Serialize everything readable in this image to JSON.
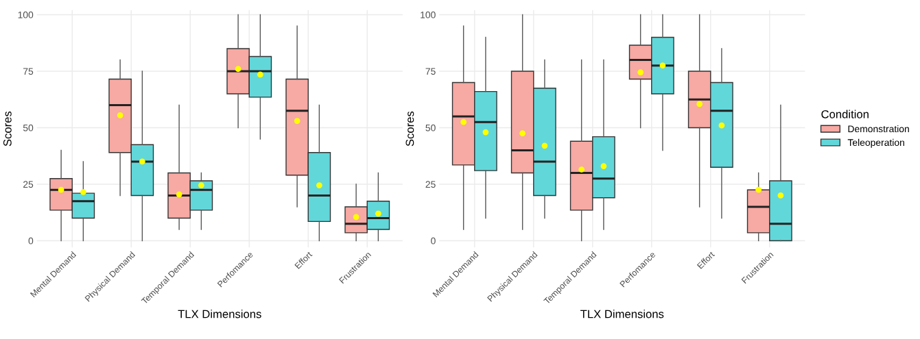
{
  "chart_data": [
    {
      "type": "box",
      "xlabel": "TLX Dimensions",
      "ylabel": "Scores",
      "categories": [
        "Mental Demand",
        "Physical Demand",
        "Temporal Demand",
        "Perfomance",
        "Effort",
        "Frustration"
      ],
      "ylim": [
        -3,
        102
      ],
      "yticks": [
        0,
        25,
        50,
        75,
        100
      ],
      "grid": true,
      "series": [
        {
          "color": "#f7a9a3",
          "boxes": [
            {
              "low": 0,
              "q1": 13.5,
              "median": 22.5,
              "q3": 27.5,
              "high": 40,
              "mean": 22.5
            },
            {
              "low": 20,
              "q1": 39,
              "median": 60,
              "q3": 71.5,
              "high": 80,
              "mean": 55.5
            },
            {
              "low": 5,
              "q1": 10,
              "median": 20,
              "q3": 30,
              "high": 60,
              "mean": 20.5
            },
            {
              "low": 50,
              "q1": 65,
              "median": 75,
              "q3": 85,
              "high": 100,
              "mean": 76
            },
            {
              "low": 15,
              "q1": 29,
              "median": 57.5,
              "q3": 71.5,
              "high": 95,
              "mean": 53
            },
            {
              "low": 0,
              "q1": 3.5,
              "median": 7.5,
              "q3": 15,
              "high": 25,
              "mean": 10.5
            }
          ]
        },
        {
          "color": "#62d7da",
          "boxes": [
            {
              "low": 0,
              "q1": 10,
              "median": 17.5,
              "q3": 21,
              "high": 35,
              "mean": 21.5
            },
            {
              "low": 0,
              "q1": 20,
              "median": 35,
              "q3": 42.5,
              "high": 75,
              "mean": 35
            },
            {
              "low": 5,
              "q1": 13.5,
              "median": 22.5,
              "q3": 26.5,
              "high": 30,
              "mean": 24.5
            },
            {
              "low": 45,
              "q1": 63.5,
              "median": 75,
              "q3": 81.5,
              "high": 100,
              "mean": 73.5
            },
            {
              "low": 0,
              "q1": 8.5,
              "median": 20,
              "q3": 39,
              "high": 60,
              "mean": 24.5
            },
            {
              "low": 0,
              "q1": 5,
              "median": 10,
              "q3": 17.5,
              "high": 30,
              "mean": 12
            }
          ]
        }
      ]
    },
    {
      "type": "box",
      "xlabel": "TLX Dimensions",
      "ylabel": "Scores",
      "legend_title": "Condition",
      "categories": [
        "Mental Demand",
        "Physical Demand",
        "Temporal Demand",
        "Perfomance",
        "Effort",
        "Frustration"
      ],
      "ylim": [
        -3,
        102
      ],
      "yticks": [
        0,
        25,
        50,
        75,
        100
      ],
      "grid": true,
      "legend": "right",
      "series": [
        {
          "name": "Demonstration",
          "color": "#f7a9a3",
          "boxes": [
            {
              "low": 5,
              "q1": 33.5,
              "median": 55,
              "q3": 70,
              "high": 95,
              "mean": 52.5
            },
            {
              "low": 5,
              "q1": 30,
              "median": 40,
              "q3": 75,
              "high": 100,
              "mean": 47.5
            },
            {
              "low": 0,
              "q1": 13.5,
              "median": 30,
              "q3": 44,
              "high": 80,
              "mean": 31.5
            },
            {
              "low": 50,
              "q1": 71.5,
              "median": 80,
              "q3": 86.5,
              "high": 100,
              "mean": 74.5
            },
            {
              "low": 15,
              "q1": 50,
              "median": 62.5,
              "q3": 75,
              "high": 100,
              "mean": 60.5
            },
            {
              "low": 0,
              "q1": 3.5,
              "median": 15,
              "q3": 22.5,
              "high": 30,
              "mean": 22.5
            }
          ]
        },
        {
          "name": "Teleoperation",
          "color": "#62d7da",
          "boxes": [
            {
              "low": 10,
              "q1": 31,
              "median": 52.5,
              "q3": 66,
              "high": 90,
              "mean": 48
            },
            {
              "low": 10,
              "q1": 20,
              "median": 35,
              "q3": 67.5,
              "high": 80,
              "mean": 42
            },
            {
              "low": 5,
              "q1": 19,
              "median": 27.5,
              "q3": 46,
              "high": 80,
              "mean": 33
            },
            {
              "low": 40,
              "q1": 65,
              "median": 77.5,
              "q3": 90,
              "high": 100,
              "mean": 77.5
            },
            {
              "low": 10,
              "q1": 32.5,
              "median": 57.5,
              "q3": 70,
              "high": 85,
              "mean": 51
            },
            {
              "low": 0,
              "q1": 0,
              "median": 7.5,
              "q3": 26.5,
              "high": 60,
              "mean": 20
            }
          ]
        }
      ]
    }
  ]
}
